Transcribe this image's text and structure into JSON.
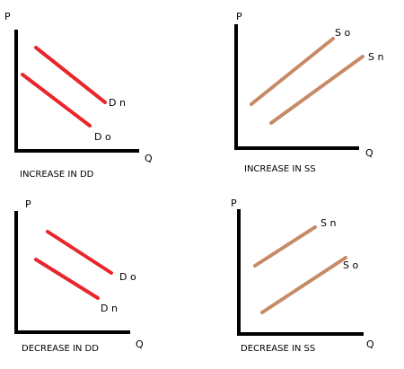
{
  "panels": [
    {
      "y_axis": "P",
      "x_axis": "Q",
      "lines": [
        {
          "label": "D n"
        },
        {
          "label": "D o"
        }
      ],
      "caption": "INCREASE IN DD"
    },
    {
      "y_axis": "P",
      "x_axis": "Q",
      "lines": [
        {
          "label": "S o"
        },
        {
          "label": "S n"
        }
      ],
      "caption": "INCREASE IN SS"
    },
    {
      "y_axis": "P",
      "x_axis": "Q",
      "lines": [
        {
          "label": "D o"
        },
        {
          "label": "D n"
        }
      ],
      "caption": "DECREASE IN DD"
    },
    {
      "y_axis": "P",
      "x_axis": "Q",
      "lines": [
        {
          "label": "S n"
        },
        {
          "label": "S o"
        }
      ],
      "caption": "DECREASE IN SS"
    }
  ]
}
